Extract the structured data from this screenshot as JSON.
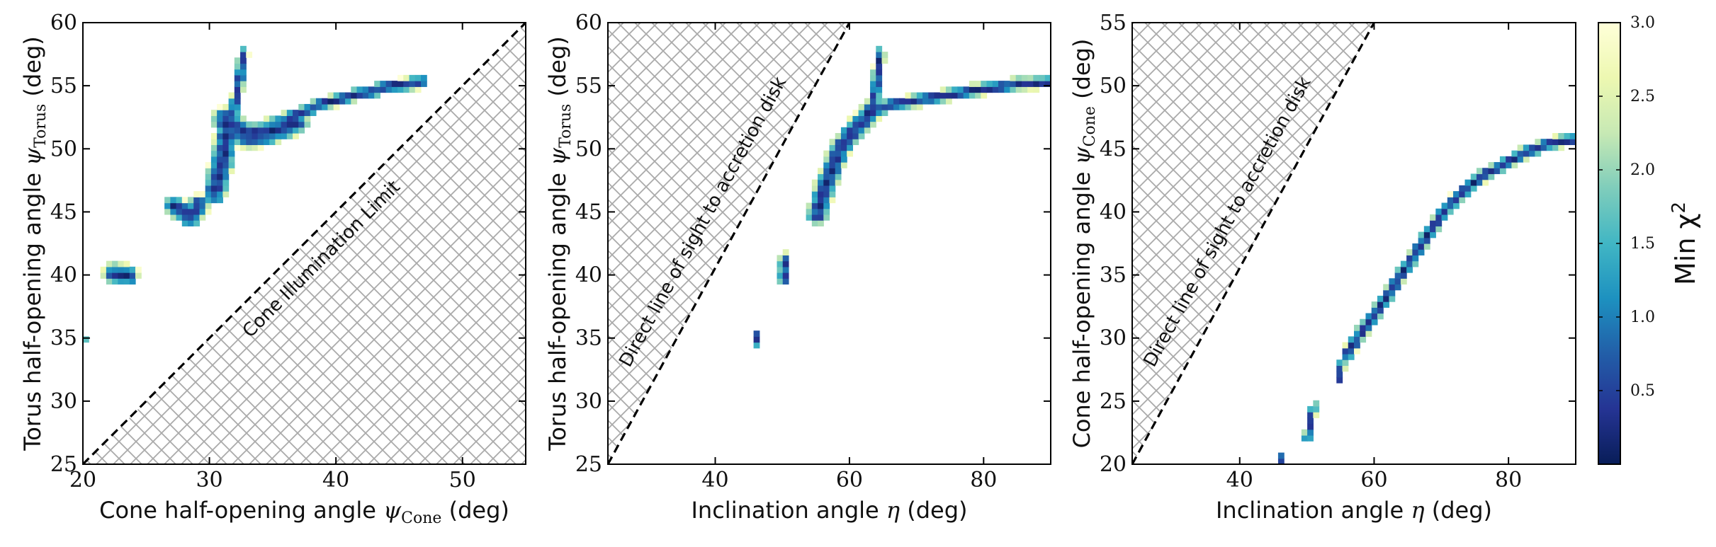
{
  "chart_data": [
    {
      "type": "heatmap",
      "xlim": [
        20,
        55
      ],
      "ylim": [
        25,
        60
      ],
      "xticks": [
        20,
        30,
        40,
        50
      ],
      "yticks": [
        25,
        30,
        35,
        40,
        45,
        50,
        55,
        60
      ],
      "xlabel_prefix": "Cone half-opening angle ",
      "xlabel_symbol": "ψ",
      "xlabel_sub": "Cone",
      "xlabel_suffix": " (deg)",
      "ylabel_prefix": "Torus half-opening angle ",
      "ylabel_symbol": "ψ",
      "ylabel_sub": "Torus",
      "ylabel_suffix": " (deg)",
      "excluded_region": {
        "boundary_line": [
          [
            20,
            25
          ],
          [
            55,
            60
          ]
        ],
        "side": "below",
        "annotation": "Cone Illumination Limit"
      },
      "blobs": [
        {
          "path": [
            [
              20.4,
              35.0
            ]
          ],
          "width": 0.3
        },
        {
          "path": [
            [
              22.4,
              40.1
            ],
            [
              23.6,
              40.0
            ]
          ],
          "width": 0.9
        },
        {
          "path": [
            [
              27.2,
              45.5
            ],
            [
              28.5,
              44.6
            ],
            [
              29.2,
              45.6
            ]
          ],
          "width": 0.9
        },
        {
          "path": [
            [
              30.4,
              46.5
            ],
            [
              30.9,
              48.6
            ],
            [
              31.3,
              50.6
            ],
            [
              31.5,
              52.0
            ]
          ],
          "width": 1.0
        },
        {
          "path": [
            [
              31.2,
              52.3
            ],
            [
              33.0,
              51.0
            ],
            [
              35.0,
              51.4
            ],
            [
              36.8,
              52.2
            ]
          ],
          "width": 1.1
        },
        {
          "path": [
            [
              31.9,
              53.0
            ],
            [
              32.3,
              55.0
            ],
            [
              32.7,
              57.6
            ]
          ],
          "width": 0.45
        },
        {
          "path": [
            [
              36.5,
              52.6
            ],
            [
              39.0,
              53.6
            ],
            [
              42.0,
              54.4
            ],
            [
              44.5,
              55.0
            ],
            [
              46.8,
              55.3
            ]
          ],
          "width": 0.55
        }
      ]
    },
    {
      "type": "heatmap",
      "xlim": [
        24,
        90
      ],
      "ylim": [
        25,
        60
      ],
      "xticks": [
        40,
        60,
        80
      ],
      "yticks": [
        25,
        30,
        35,
        40,
        45,
        50,
        55,
        60
      ],
      "xlabel_prefix": "Inclination angle ",
      "xlabel_symbol": "η",
      "xlabel_suffix": " (deg)",
      "ylabel_prefix": "Torus half-opening angle ",
      "ylabel_symbol": "ψ",
      "ylabel_sub": "Torus",
      "ylabel_suffix": " (deg)",
      "excluded_region": {
        "boundary_line": [
          [
            24,
            25
          ],
          [
            60,
            60
          ]
        ],
        "side": "above",
        "annotation": "Direct line of sight to accretion disk"
      },
      "blobs": [
        {
          "path": [
            [
              46.0,
              34.6
            ],
            [
              46.0,
              35.4
            ]
          ],
          "width": 0.3
        },
        {
          "path": [
            [
              50.2,
              39.6
            ],
            [
              50.3,
              41.4
            ]
          ],
          "width": 0.45
        },
        {
          "path": [
            [
              55.2,
              44.8
            ],
            [
              56.2,
              46.8
            ],
            [
              57.4,
              48.4
            ],
            [
              58.6,
              50.0
            ],
            [
              60.2,
              51.2
            ],
            [
              62.0,
              52.2
            ],
            [
              63.6,
              53.2
            ]
          ],
          "width": 0.9
        },
        {
          "path": [
            [
              63.4,
              52.6
            ],
            [
              64.0,
              55.0
            ],
            [
              64.6,
              57.6
            ]
          ],
          "width": 0.45
        },
        {
          "path": [
            [
              63.0,
              53.0
            ],
            [
              67.0,
              53.6
            ],
            [
              72.0,
              54.0
            ],
            [
              78.0,
              54.6
            ],
            [
              84.0,
              55.1
            ],
            [
              90.0,
              55.3
            ]
          ],
          "width": 0.55
        }
      ]
    },
    {
      "type": "heatmap",
      "xlim": [
        24,
        90
      ],
      "ylim": [
        20,
        55
      ],
      "xticks": [
        40,
        60,
        80
      ],
      "yticks": [
        20,
        25,
        30,
        35,
        40,
        45,
        50,
        55
      ],
      "xlabel_prefix": "Inclination angle ",
      "xlabel_symbol": "η",
      "xlabel_suffix": " (deg)",
      "ylabel_prefix": "Cone half-opening angle ",
      "ylabel_symbol": "ψ",
      "ylabel_sub": "Cone",
      "ylabel_suffix": " (deg)",
      "excluded_region": {
        "boundary_line": [
          [
            24,
            20
          ],
          [
            60,
            55
          ]
        ],
        "side": "above",
        "annotation": "Direct line of sight to accretion disk"
      },
      "blobs": [
        {
          "path": [
            [
              46.0,
              20.0
            ],
            [
              46.0,
              20.8
            ]
          ],
          "width": 0.3
        },
        {
          "path": [
            [
              50.0,
              22.0
            ],
            [
              50.5,
              23.5
            ],
            [
              51.0,
              24.6
            ]
          ],
          "width": 0.35
        },
        {
          "path": [
            [
              54.8,
              26.8
            ],
            [
              55.2,
              28.0
            ]
          ],
          "width": 0.35
        },
        {
          "path": [
            [
              56.0,
              28.8
            ],
            [
              58.0,
              30.4
            ],
            [
              60.0,
              31.8
            ],
            [
              62.0,
              33.4
            ],
            [
              64.0,
              35.0
            ],
            [
              66.0,
              36.6
            ],
            [
              68.0,
              38.2
            ],
            [
              70.0,
              39.8
            ],
            [
              72.0,
              41.0
            ],
            [
              74.0,
              42.0
            ],
            [
              76.0,
              42.8
            ],
            [
              78.0,
              43.4
            ],
            [
              80.0,
              44.0
            ],
            [
              82.0,
              44.6
            ],
            [
              84.0,
              45.0
            ],
            [
              86.0,
              45.4
            ],
            [
              88.0,
              45.6
            ],
            [
              90.0,
              45.8
            ]
          ],
          "width": 0.55
        }
      ]
    }
  ],
  "colorbar": {
    "label": "Min χ",
    "label_sup": "2",
    "range": [
      0,
      3.0
    ],
    "ticks": [
      "0.5",
      "1.0",
      "1.5",
      "2.0",
      "2.5",
      "3.0"
    ],
    "tick_values": [
      0.5,
      1.0,
      1.5,
      2.0,
      2.5,
      3.0
    ],
    "colormap": "YlGnBu_r",
    "colors": [
      "#081d58",
      "#253494",
      "#225ea8",
      "#1d91c0",
      "#41b6c4",
      "#7fcdbb",
      "#c7e9b4",
      "#edf8b1",
      "#ffffd9"
    ]
  }
}
